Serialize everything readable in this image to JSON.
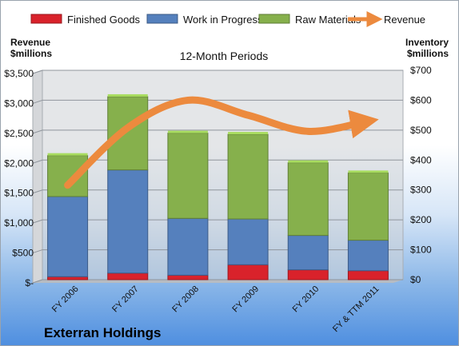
{
  "chart_data": {
    "type": "bar",
    "subtitle": "12-Month Periods",
    "footer_title": "Exterran Holdings",
    "left_axis_title": [
      "Revenue",
      "$millions"
    ],
    "right_axis_title": [
      "Inventory",
      "$millions"
    ],
    "left_ticks": [
      "$3,500",
      "$3,000",
      "$2,500",
      "$2,000",
      "$1,500",
      "$1,000",
      "$500",
      "$-"
    ],
    "right_ticks": [
      "$700",
      "$600",
      "$500",
      "$400",
      "$300",
      "$200",
      "$100",
      "$0"
    ],
    "left_ylim": [
      0,
      3500
    ],
    "right_ylim": [
      0,
      700
    ],
    "categories": [
      "FY 2006",
      "FY 2007",
      "FY 2008",
      "FY 2009",
      "FY 2010",
      "FY & TTM 2011"
    ],
    "series": [
      {
        "name": "Finished Goods",
        "axis": "right",
        "color": "#d9222b",
        "values": [
          10,
          22,
          15,
          50,
          33,
          30
        ]
      },
      {
        "name": "Work in Progress",
        "axis": "right",
        "color": "#5580bd",
        "values": [
          268,
          345,
          190,
          153,
          115,
          102
        ]
      },
      {
        "name": "Raw Materials",
        "axis": "right",
        "color": "#86b04c",
        "values": [
          137,
          245,
          285,
          283,
          243,
          225
        ]
      },
      {
        "name": "Revenue",
        "axis": "left",
        "type": "line",
        "color": "#ec8a3e",
        "values": [
          1580,
          2540,
          3000,
          2750,
          2480,
          2650
        ]
      }
    ],
    "legend_position": "top",
    "grid": true
  }
}
